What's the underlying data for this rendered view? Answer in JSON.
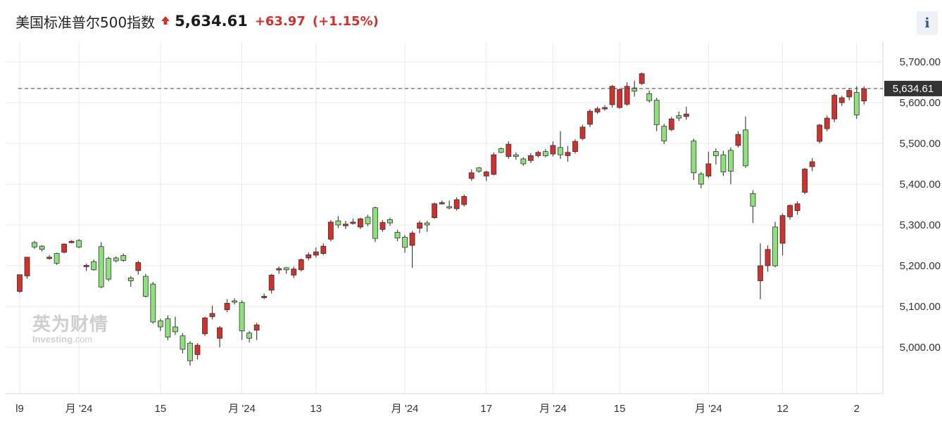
{
  "header": {
    "title": "美国标准普尔500指数",
    "price": "5,634.61",
    "change": "+63.97",
    "change_pct": "(+1.15%)",
    "direction": "up",
    "info_label": "i"
  },
  "watermark": {
    "cn": "英为财情",
    "en_main": "Investing",
    "en_suffix": ".com"
  },
  "colors": {
    "up": "#d0312d",
    "down": "#8ee07a",
    "wick": "#444444",
    "grid": "#e9e9e9",
    "current_line": "#444444",
    "label_bg": "#333333"
  },
  "chart_data": {
    "type": "candlestick",
    "y_ticks": [
      {
        "value": 5700,
        "label": "5,700.00"
      },
      {
        "value": 5600,
        "label": "5,600.00"
      },
      {
        "value": 5500,
        "label": "5,500.00"
      },
      {
        "value": 5400,
        "label": "5,400.00"
      },
      {
        "value": 5300,
        "label": "5,300.00"
      },
      {
        "value": 5200,
        "label": "5,200.00"
      },
      {
        "value": 5100,
        "label": "5,100.00"
      },
      {
        "value": 5000,
        "label": "5,000.00"
      }
    ],
    "ylim": [
      4910,
      5730
    ],
    "current": {
      "value": 5634.61,
      "label": "5,634.61"
    },
    "x_labels": [
      {
        "index": 0,
        "label": "l9"
      },
      {
        "index": 8,
        "label": "月 '24"
      },
      {
        "index": 19,
        "label": "15"
      },
      {
        "index": 30,
        "label": "月 '24"
      },
      {
        "index": 40,
        "label": "13"
      },
      {
        "index": 52,
        "label": "月 '24"
      },
      {
        "index": 63,
        "label": "17"
      },
      {
        "index": 72,
        "label": "月 '24"
      },
      {
        "index": 81,
        "label": "15"
      },
      {
        "index": 93,
        "label": "月 '24"
      },
      {
        "index": 103,
        "label": "12"
      },
      {
        "index": 113,
        "label": "2"
      }
    ],
    "candles": [
      [
        5137,
        5178,
        5133,
        5175
      ],
      [
        5175,
        5221,
        5168,
        5218
      ],
      [
        5257,
        5246,
        5241,
        5261
      ],
      [
        5248,
        5240,
        5235,
        5250
      ],
      [
        5220,
        5221,
        5215,
        5226
      ],
      [
        5230,
        5206,
        5202,
        5232
      ],
      [
        5233,
        5253,
        5230,
        5255
      ],
      [
        5257,
        5260,
        5255,
        5263
      ],
      [
        5262,
        5246,
        5243,
        5265
      ],
      [
        5200,
        5201,
        5187,
        5205
      ],
      [
        5210,
        5190,
        5188,
        5215
      ],
      [
        5247,
        5148,
        5145,
        5258
      ],
      [
        5218,
        5167,
        5162,
        5222
      ],
      [
        5219,
        5212,
        5208,
        5223
      ],
      [
        5225,
        5213,
        5210,
        5230
      ],
      [
        5170,
        5163,
        5148,
        5175
      ],
      [
        5188,
        5208,
        5178,
        5212
      ],
      [
        5174,
        5125,
        5122,
        5180
      ],
      [
        5155,
        5062,
        5058,
        5160
      ],
      [
        5065,
        5050,
        5040,
        5070
      ],
      [
        5070,
        5025,
        5018,
        5078
      ],
      [
        5050,
        5038,
        5030,
        5075
      ],
      [
        5028,
        4995,
        4985,
        5035
      ],
      [
        5010,
        4967,
        4955,
        5015
      ],
      [
        4982,
        5005,
        4970,
        5010
      ],
      [
        5033,
        5072,
        5028,
        5075
      ],
      [
        5075,
        5083,
        5068,
        5102
      ],
      [
        5022,
        5048,
        5000,
        5052
      ],
      [
        5092,
        5108,
        5086,
        5118
      ],
      [
        5114,
        5113,
        5105,
        5120
      ],
      [
        5110,
        5040,
        5018,
        5115
      ],
      [
        5035,
        5022,
        5012,
        5040
      ],
      [
        5042,
        5055,
        5018,
        5060
      ],
      [
        5122,
        5125,
        5118,
        5132
      ],
      [
        5140,
        5177,
        5132,
        5180
      ],
      [
        5190,
        5193,
        5180,
        5198
      ],
      [
        5195,
        5190,
        5180,
        5197
      ],
      [
        5177,
        5192,
        5170,
        5198
      ],
      [
        5190,
        5215,
        5186,
        5218
      ],
      [
        5219,
        5227,
        5213,
        5233
      ],
      [
        5226,
        5234,
        5220,
        5245
      ],
      [
        5230,
        5248,
        5226,
        5255
      ],
      [
        5265,
        5307,
        5260,
        5312
      ],
      [
        5310,
        5300,
        5292,
        5322
      ],
      [
        5298,
        5302,
        5290,
        5310
      ],
      [
        5306,
        5307,
        5301,
        5316
      ],
      [
        5295,
        5315,
        5290,
        5318
      ],
      [
        5319,
        5303,
        5297,
        5325
      ],
      [
        5342,
        5267,
        5258,
        5345
      ],
      [
        5289,
        5306,
        5283,
        5312
      ],
      [
        5313,
        5305,
        5298,
        5318
      ],
      [
        5282,
        5268,
        5260,
        5288
      ],
      [
        5270,
        5245,
        5232,
        5275
      ],
      [
        5250,
        5280,
        5195,
        5285
      ],
      [
        5292,
        5305,
        5280,
        5310
      ],
      [
        5305,
        5300,
        5283,
        5310
      ],
      [
        5318,
        5352,
        5315,
        5355
      ],
      [
        5355,
        5355,
        5350,
        5360
      ],
      [
        5345,
        5343,
        5338,
        5360
      ],
      [
        5340,
        5362,
        5335,
        5368
      ],
      [
        5350,
        5370,
        5345,
        5375
      ],
      [
        5414,
        5428,
        5408,
        5436
      ],
      [
        5440,
        5432,
        5428,
        5442
      ],
      [
        5420,
        5430,
        5408,
        5433
      ],
      [
        5424,
        5472,
        5422,
        5478
      ],
      [
        5487,
        5478,
        5476,
        5490
      ],
      [
        5468,
        5498,
        5462,
        5505
      ],
      [
        5472,
        5468,
        5460,
        5478
      ],
      [
        5462,
        5450,
        5445,
        5466
      ],
      [
        5458,
        5470,
        5452,
        5476
      ],
      [
        5470,
        5478,
        5465,
        5482
      ],
      [
        5480,
        5470,
        5466,
        5486
      ],
      [
        5474,
        5495,
        5468,
        5505
      ],
      [
        5490,
        5472,
        5462,
        5530
      ],
      [
        5470,
        5478,
        5455,
        5494
      ],
      [
        5480,
        5505,
        5475,
        5510
      ],
      [
        5512,
        5540,
        5508,
        5546
      ],
      [
        5547,
        5579,
        5540,
        5584
      ],
      [
        5577,
        5585,
        5572,
        5590
      ],
      [
        5585,
        5588,
        5580,
        5594
      ],
      [
        5595,
        5640,
        5588,
        5643
      ],
      [
        5588,
        5632,
        5585,
        5635
      ],
      [
        5596,
        5640,
        5592,
        5650
      ],
      [
        5636,
        5628,
        5615,
        5654
      ],
      [
        5647,
        5671,
        5643,
        5674
      ],
      [
        5622,
        5605,
        5600,
        5630
      ],
      [
        5606,
        5546,
        5530,
        5612
      ],
      [
        5542,
        5506,
        5498,
        5548
      ],
      [
        5534,
        5560,
        5530,
        5565
      ],
      [
        5568,
        5562,
        5555,
        5578
      ],
      [
        5566,
        5572,
        5558,
        5590
      ],
      [
        5506,
        5428,
        5410,
        5512
      ],
      [
        5425,
        5400,
        5390,
        5430
      ],
      [
        5420,
        5450,
        5415,
        5480
      ],
      [
        5480,
        5470,
        5448,
        5488
      ],
      [
        5472,
        5430,
        5420,
        5482
      ],
      [
        5483,
        5432,
        5400,
        5490
      ],
      [
        5495,
        5522,
        5490,
        5530
      ],
      [
        5533,
        5445,
        5440,
        5566
      ],
      [
        5377,
        5346,
        5305,
        5385
      ],
      [
        5163,
        5200,
        5118,
        5255
      ],
      [
        5200,
        5240,
        5185,
        5250
      ],
      [
        5295,
        5200,
        5196,
        5308
      ],
      [
        5255,
        5323,
        5225,
        5328
      ],
      [
        5320,
        5348,
        5313,
        5350
      ],
      [
        5335,
        5352,
        5325,
        5358
      ],
      [
        5380,
        5437,
        5375,
        5440
      ],
      [
        5443,
        5455,
        5432,
        5464
      ],
      [
        5505,
        5545,
        5500,
        5548
      ],
      [
        5536,
        5562,
        5530,
        5568
      ],
      [
        5560,
        5618,
        5552,
        5622
      ],
      [
        5600,
        5612,
        5592,
        5617
      ],
      [
        5614,
        5630,
        5606,
        5635
      ],
      [
        5625,
        5570,
        5560,
        5640
      ],
      [
        5604,
        5634,
        5595,
        5640
      ]
    ]
  }
}
